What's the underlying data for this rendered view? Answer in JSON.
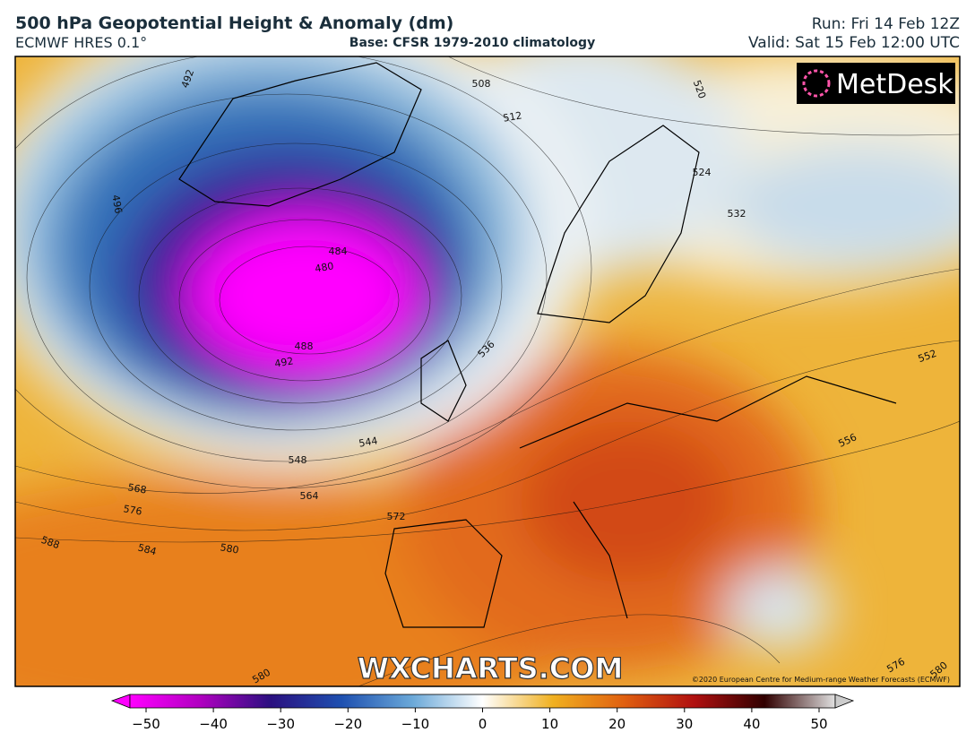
{
  "header": {
    "title": "500 hPa Geopotential Height & Anomaly (dm)",
    "model": "ECMWF HRES 0.1°",
    "base": "Base: CFSR 1979-2010 climatology",
    "run": "Run: Fri 14 Feb 12Z",
    "valid": "Valid: Sat 15 Feb 12:00 UTC"
  },
  "map": {
    "logo": "MetDesk",
    "watermark": "WXCHARTS.COM",
    "copyright": "©2020 European Centre for Medium-range Weather Forecasts (ECMWF)",
    "contour_labels": [
      "492",
      "508",
      "512",
      "520",
      "524",
      "532",
      "484",
      "480",
      "488",
      "492",
      "496",
      "536",
      "544",
      "548",
      "552",
      "556",
      "564",
      "568",
      "572",
      "576",
      "580",
      "584",
      "588",
      "580",
      "576",
      "580"
    ]
  },
  "colorbar": {
    "ticks": [
      {
        "value": -50,
        "label": "−50"
      },
      {
        "value": -40,
        "label": "−40"
      },
      {
        "value": -30,
        "label": "−30"
      },
      {
        "value": -20,
        "label": "−20"
      },
      {
        "value": -10,
        "label": "−10"
      },
      0,
      10,
      20,
      30,
      40,
      50
    ]
  }
}
